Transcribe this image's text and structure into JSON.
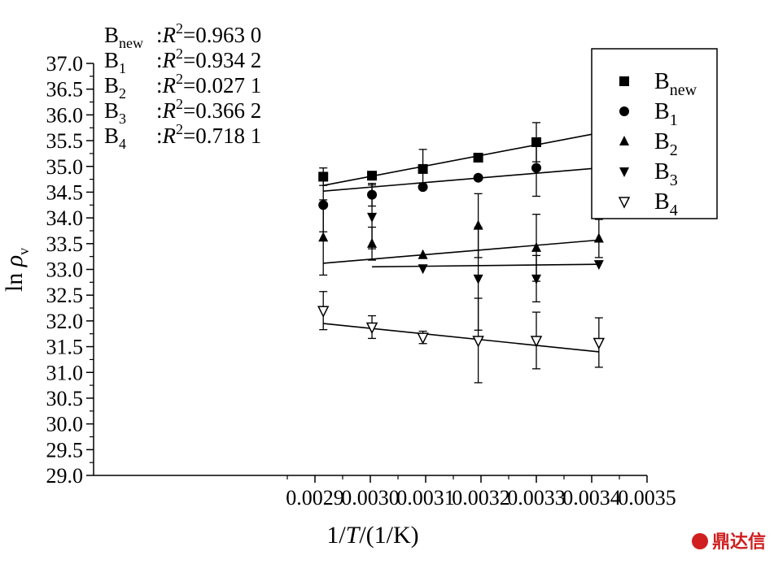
{
  "chart_data": {
    "type": "scatter",
    "xlabel": {
      "pre": "1/",
      "var": "T",
      "post": "/(1/K)"
    },
    "ylabel": {
      "pre": "ln ",
      "var": "ρ",
      "sub": "v"
    },
    "xlim": [
      0.0025,
      0.0035
    ],
    "ylim": [
      29.0,
      37.0
    ],
    "xticks": [
      "0.0029",
      "0.0030",
      "0.0031",
      "0.0032",
      "0.0033",
      "0.0034",
      "0.0035"
    ],
    "xtick_values": [
      0.0029,
      0.003,
      0.0031,
      0.0032,
      0.0033,
      0.0034,
      0.0035
    ],
    "yticks": [
      "29.0",
      "29.5",
      "30.0",
      "30.5",
      "31.0",
      "31.5",
      "32.0",
      "32.5",
      "33.0",
      "33.5",
      "34.0",
      "34.5",
      "35.0",
      "35.5",
      "36.0",
      "36.5",
      "37.0"
    ],
    "ytick_values": [
      29.0,
      29.5,
      30.0,
      30.5,
      31.0,
      31.5,
      32.0,
      32.5,
      33.0,
      33.5,
      34.0,
      34.5,
      35.0,
      35.5,
      36.0,
      36.5,
      37.0
    ],
    "legend_position": "top-right",
    "series": [
      {
        "name": "B",
        "sub": "new",
        "marker": "square",
        "r2": "0.963 0",
        "color": "#000000",
        "points": [
          {
            "x": 0.002915,
            "y": 34.8,
            "err": 0.17
          },
          {
            "x": 0.003003,
            "y": 34.82,
            "err": 0
          },
          {
            "x": 0.003095,
            "y": 34.95,
            "err": 0.38
          },
          {
            "x": 0.003195,
            "y": 35.17,
            "err": 0
          },
          {
            "x": 0.0033,
            "y": 35.47,
            "err": 0.38
          },
          {
            "x": 0.003413,
            "y": 35.65,
            "err": 0
          }
        ],
        "fit": [
          [
            0.002915,
            34.63
          ],
          [
            0.003413,
            35.65
          ]
        ]
      },
      {
        "name": "B",
        "sub": "1",
        "marker": "circle",
        "r2": "0.934 2",
        "color": "#000000",
        "points": [
          {
            "x": 0.002915,
            "y": 34.25,
            "err": 0.52
          },
          {
            "x": 0.003003,
            "y": 34.45,
            "err": 0.22
          },
          {
            "x": 0.003095,
            "y": 34.6,
            "err": 0
          },
          {
            "x": 0.003195,
            "y": 34.78,
            "err": 0
          },
          {
            "x": 0.0033,
            "y": 34.97,
            "err": 0.55
          },
          {
            "x": 0.003413,
            "y": 34.97,
            "err": 0
          }
        ],
        "fit": [
          [
            0.002915,
            34.52
          ],
          [
            0.003413,
            34.97
          ]
        ]
      },
      {
        "name": "B",
        "sub": "2",
        "marker": "triangle-up",
        "r2": "0.027 1",
        "color": "#000000",
        "points": [
          {
            "x": 0.002915,
            "y": 33.62,
            "err": 0.73
          },
          {
            "x": 0.003003,
            "y": 33.5,
            "err": 0.32
          },
          {
            "x": 0.003095,
            "y": 33.28,
            "err": 0
          },
          {
            "x": 0.003195,
            "y": 33.85,
            "err": 0.62
          },
          {
            "x": 0.0033,
            "y": 33.42,
            "err": 0.65
          },
          {
            "x": 0.003413,
            "y": 33.6,
            "err": 0.37
          }
        ],
        "fit": [
          [
            0.002915,
            33.12
          ],
          [
            0.003413,
            33.57
          ]
        ]
      },
      {
        "name": "B",
        "sub": "3",
        "marker": "triangle-down",
        "r2": "0.366 2",
        "color": "#000000",
        "points": [
          {
            "x": 0.003003,
            "y": 34.02,
            "err": 0.62
          },
          {
            "x": 0.003095,
            "y": 33.02,
            "err": 0
          },
          {
            "x": 0.003195,
            "y": 32.82,
            "err": 1.0
          },
          {
            "x": 0.0033,
            "y": 32.82,
            "err": 0.45
          },
          {
            "x": 0.003413,
            "y": 33.1,
            "err": 0
          }
        ],
        "fit": [
          [
            0.003003,
            33.05
          ],
          [
            0.003413,
            33.1
          ]
        ]
      },
      {
        "name": "B",
        "sub": "4",
        "marker": "triangle-down-open",
        "r2": "0.718 1",
        "color": "#000000",
        "points": [
          {
            "x": 0.002915,
            "y": 32.2,
            "err": 0.37
          },
          {
            "x": 0.003003,
            "y": 31.88,
            "err": 0.22
          },
          {
            "x": 0.003095,
            "y": 31.68,
            "err": 0.12
          },
          {
            "x": 0.003195,
            "y": 31.62,
            "err": 0.82
          },
          {
            "x": 0.0033,
            "y": 31.62,
            "err": 0.55
          },
          {
            "x": 0.003413,
            "y": 31.58,
            "err": 0.48
          }
        ],
        "fit": [
          [
            0.002915,
            31.95
          ],
          [
            0.003413,
            31.4
          ]
        ]
      }
    ]
  },
  "watermark": "鼎达信"
}
